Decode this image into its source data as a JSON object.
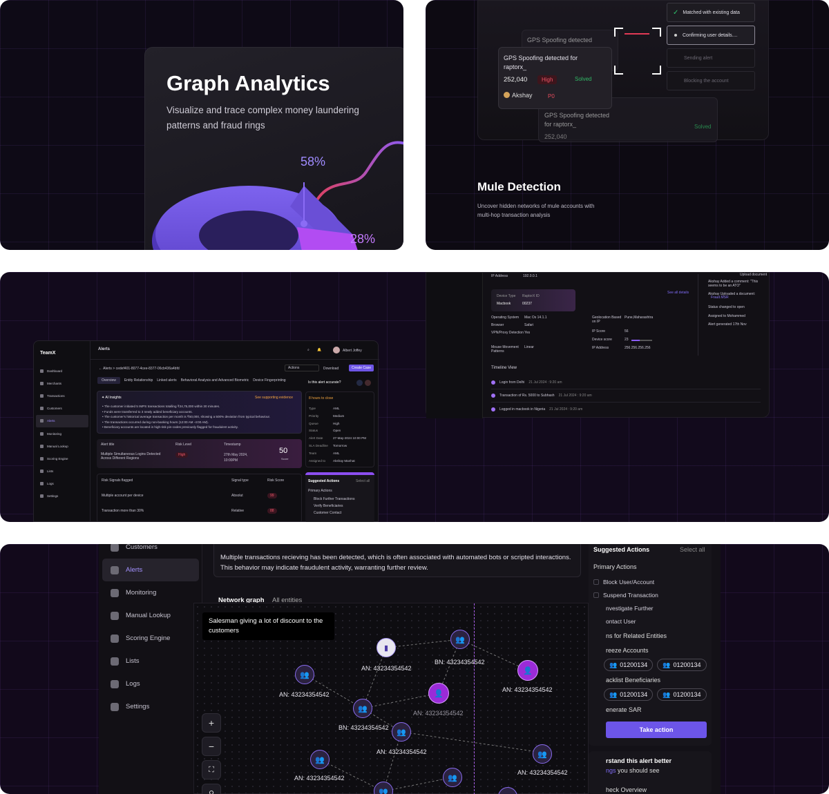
{
  "graph_card": {
    "title": "Graph Analytics",
    "subtitle": "Visualize and trace complex money laundering patterns and fraud rings",
    "pct_top": "58%",
    "pct_bottom": "28%"
  },
  "mule": {
    "title": "Mule Detection",
    "subtitle": "Uncover hidden networks of mule accounts with multi-hop transaction analysis",
    "card_title": "GPS Spoofing detected for raptorx_",
    "card_amount": "252,040",
    "card_severity": "High",
    "card_status": "Solved",
    "card_user": "Akshay",
    "card_priority": "P0",
    "back_card_title": "GPS Spoofing detected",
    "back_card_sub": "for raptorx_",
    "steps": [
      "Matched with existing data",
      "Confirming user details....",
      "Sending alert",
      "Blocking the account"
    ]
  },
  "app": {
    "brand": "TeamX",
    "header": "Alerts",
    "user": "Albert Joffey",
    "nav": [
      "Dashboard",
      "Merchants",
      "Transactions",
      "Customers",
      "Alerts",
      "Monitoring",
      "Manual Lookup",
      "Scoring Engine",
      "Lists",
      "Logs",
      "Settings"
    ],
    "breadcrumb_root": "Alerts",
    "case_id": "cedef401-8077-4cee-8377-06cb436a4bfd",
    "actions_label": "Actions",
    "download_label": "Download",
    "create_case": "Create Case",
    "tabs": [
      "Overview",
      "Entity Relationship",
      "Linked alerts",
      "Behavioral Analysis and Advanced Biometric",
      "Device Fingerprinting"
    ],
    "ai_title": "AI Insights",
    "ai_link": "See supporting evidence",
    "ai_points": [
      "The customer initiated 5 IMPS transactions totalling ₹24,75,000 within 30 minutes.",
      "Funds were transferred to 3 newly added beneficiary accounts.",
      "The customer's historical average transaction per month is ₹50,000, showing a 500% deviation from typical behaviour.",
      "The transactions occurred during non-banking hours (12:00 AM -4:00 AM).",
      "Beneficiary accounts are located in high-risk pin-codes previously flagged for fraudulent activity."
    ],
    "alert_head": [
      "Alert title",
      "Risk Level",
      "Timestamp"
    ],
    "alert_title": "Multiple Simultaneous Logins Detected Across Different Regions",
    "alert_level": "High",
    "alert_time": "27th May 2024, 10:00PM",
    "score": "50",
    "score_label": "Score",
    "risk_head": [
      "Risk Signals flagged",
      "Signal type",
      "Risk Score"
    ],
    "risk_rows": [
      {
        "name": "Multiple account per device",
        "type": "Absolut",
        "score": "99"
      },
      {
        "name": "Transaction more than 30%",
        "type": "Relative",
        "score": "88"
      }
    ],
    "accurate_q": "Is this alert accurate?",
    "due": "8 hours to close",
    "detail_keys": [
      "Type",
      "Priority",
      "Queue",
      "Status",
      "Alert Date",
      "SLA Deadline",
      "Team",
      "Assigned to"
    ],
    "detail_vals": [
      "AML",
      "Medium",
      "High",
      "Open",
      "27-May-2024 10:00 PM",
      "Tomorrow",
      "AML",
      "Akshay Manhat"
    ],
    "sugg_title": "Suggested Actions",
    "select_all": "Select all",
    "primary": "Primary Actions",
    "sugg_items": [
      "Block Further Transactions",
      "Verify Beneficiaries",
      "Customer Contact"
    ]
  },
  "device": {
    "ip_label": "IP Address",
    "ip": "192.0.0.1",
    "upload": "Upload document",
    "see_all": "See all details",
    "device_type_label": "Device Type",
    "device_type": "Macbook",
    "raptor_label": "RaptorX ID",
    "raptor": "00237",
    "keys_l": [
      "Operating System",
      "Browser",
      "VPN/Proxy Detection",
      "Mouse Movement Patterns"
    ],
    "vals_l": [
      "Mac Os 14.1.1",
      "Safari",
      "Yes",
      "Linear"
    ],
    "keys_r": [
      "Geolocation Based on IP",
      "IP Score",
      "Device score",
      "IP Address"
    ],
    "vals_r": [
      "Pune,Maharashtra",
      "56",
      "23",
      "256.256.256.256"
    ],
    "timeline_title": "Timeline View",
    "timeline": [
      {
        "t": "Login from Delhi",
        "d": "21 Jul 2024 : 9:20 am"
      },
      {
        "t": "Transaction of Rs. 5000 to Subhash",
        "d": "21 Jul 2024 : 9:20 am"
      },
      {
        "t": "Logged in macbook in Nigeria",
        "d": "21 Jul 2024 : 9:20 am"
      }
    ],
    "activity": [
      "Akshay Added a comment: \"This seems to be an ATO\"",
      "Akshay Uploaded a document:",
      "Fraud.MSR",
      "Status changed to open",
      "Assigned to Mohammed",
      "Alert generated 17th Nov"
    ]
  },
  "network": {
    "nav": [
      "Customers",
      "Alerts",
      "Monitoring",
      "Manual Lookup",
      "Scoring Engine",
      "Lists",
      "Logs",
      "Settings"
    ],
    "desc": "Multiple transactions recieving has been detected, which is often associated with automated bots or scripted interactions. This behavior may indicate fraudulent activity, warranting further review.",
    "tab_graph": "Network graph",
    "tab_all": "All entities",
    "tooltip": "Salesman giving a lot of discount to the customers",
    "labels": [
      "AN: 43234354542",
      "BN: 43234354542",
      "AN: 43234354542",
      "AN: 43234354542",
      "AN: 43234354542",
      "BN: 43234354542",
      "AN: 43234354542",
      "AN: 43234354542",
      "AN: 43234354542"
    ],
    "sugg_title": "Suggested Actions",
    "select_all": "Select all",
    "primary": "Primary Actions",
    "primary_items": [
      "Block User/Account",
      "Suspend Transaction",
      "nvestigate Further",
      "ontact User"
    ],
    "related": "ns for Related Entities",
    "freeze": "reeze Accounts",
    "blacklist": "acklist Beneficiaries",
    "chip": "01200134",
    "sar": "enerate SAR",
    "take_action": "Take action",
    "understand": "rstand this alert better",
    "understand_sub_link": "ngs",
    "understand_sub": " you should see",
    "check": "heck Overview"
  }
}
